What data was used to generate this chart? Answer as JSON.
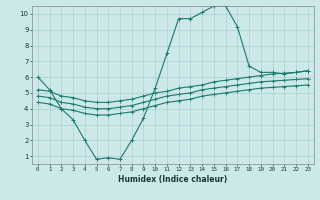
{
  "xlabel": "Humidex (Indice chaleur)",
  "bg_color": "#cce8e8",
  "line_color": "#1a7a6e",
  "grid_color": "#aad0d0",
  "xlim": [
    -0.5,
    23.5
  ],
  "ylim": [
    0.5,
    10.5
  ],
  "xticks": [
    0,
    1,
    2,
    3,
    4,
    5,
    6,
    7,
    8,
    9,
    10,
    11,
    12,
    13,
    14,
    15,
    16,
    17,
    18,
    19,
    20,
    21,
    22,
    23
  ],
  "yticks": [
    1,
    2,
    3,
    4,
    5,
    6,
    7,
    8,
    9,
    10
  ],
  "line1_x": [
    0,
    1,
    2,
    3,
    4,
    5,
    6,
    7,
    8,
    9,
    10,
    11,
    12,
    13,
    14,
    15,
    16,
    17,
    18,
    19,
    20,
    21,
    22,
    23
  ],
  "line1_y": [
    6.0,
    5.2,
    4.0,
    3.3,
    2.0,
    0.8,
    0.9,
    0.8,
    2.0,
    3.4,
    5.3,
    7.5,
    9.7,
    9.7,
    10.1,
    10.5,
    10.5,
    9.2,
    6.7,
    6.3,
    6.3,
    6.2,
    6.3,
    6.4
  ],
  "line2_x": [
    0,
    1,
    2,
    3,
    4,
    5,
    6,
    7,
    8,
    9,
    10,
    11,
    12,
    13,
    14,
    15,
    16,
    17,
    18,
    19,
    20,
    21,
    22,
    23
  ],
  "line2_y": [
    5.2,
    5.1,
    4.8,
    4.7,
    4.5,
    4.4,
    4.4,
    4.5,
    4.6,
    4.8,
    5.0,
    5.1,
    5.3,
    5.4,
    5.5,
    5.7,
    5.8,
    5.9,
    6.0,
    6.1,
    6.2,
    6.25,
    6.3,
    6.4
  ],
  "line3_x": [
    0,
    1,
    2,
    3,
    4,
    5,
    6,
    7,
    8,
    9,
    10,
    11,
    12,
    13,
    14,
    15,
    16,
    17,
    18,
    19,
    20,
    21,
    22,
    23
  ],
  "line3_y": [
    4.8,
    4.7,
    4.4,
    4.3,
    4.1,
    4.0,
    4.0,
    4.1,
    4.2,
    4.4,
    4.6,
    4.8,
    4.9,
    5.0,
    5.2,
    5.3,
    5.4,
    5.5,
    5.6,
    5.7,
    5.75,
    5.8,
    5.85,
    5.9
  ],
  "line4_x": [
    0,
    1,
    2,
    3,
    4,
    5,
    6,
    7,
    8,
    9,
    10,
    11,
    12,
    13,
    14,
    15,
    16,
    17,
    18,
    19,
    20,
    21,
    22,
    23
  ],
  "line4_y": [
    4.4,
    4.3,
    4.0,
    3.9,
    3.7,
    3.6,
    3.6,
    3.7,
    3.8,
    4.0,
    4.2,
    4.4,
    4.5,
    4.6,
    4.8,
    4.9,
    5.0,
    5.1,
    5.2,
    5.3,
    5.35,
    5.4,
    5.45,
    5.5
  ]
}
